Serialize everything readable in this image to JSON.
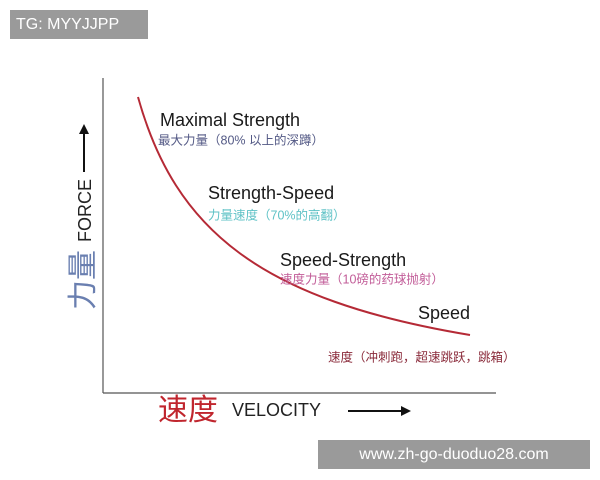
{
  "watermark": "TG: MYYJJPP",
  "axes": {
    "y_label_cn": "力量",
    "y_label_en": "FORCE",
    "x_label_cn": "速度",
    "x_label_en": "VELOCITY"
  },
  "zones": [
    {
      "title": "Maximal Strength",
      "description": "最大力量（80% 以上的深蹲）"
    },
    {
      "title": "Strength-Speed",
      "description": "力量速度（70%的高翻）"
    },
    {
      "title": "Speed-Strength",
      "description": "速度力量（10磅的药球抛射）"
    },
    {
      "title": "Speed",
      "description": "速度（冲刺跑，超速跳跃，跳箱）"
    }
  ],
  "footer_url": "www.zh-go-duoduo28.com"
}
